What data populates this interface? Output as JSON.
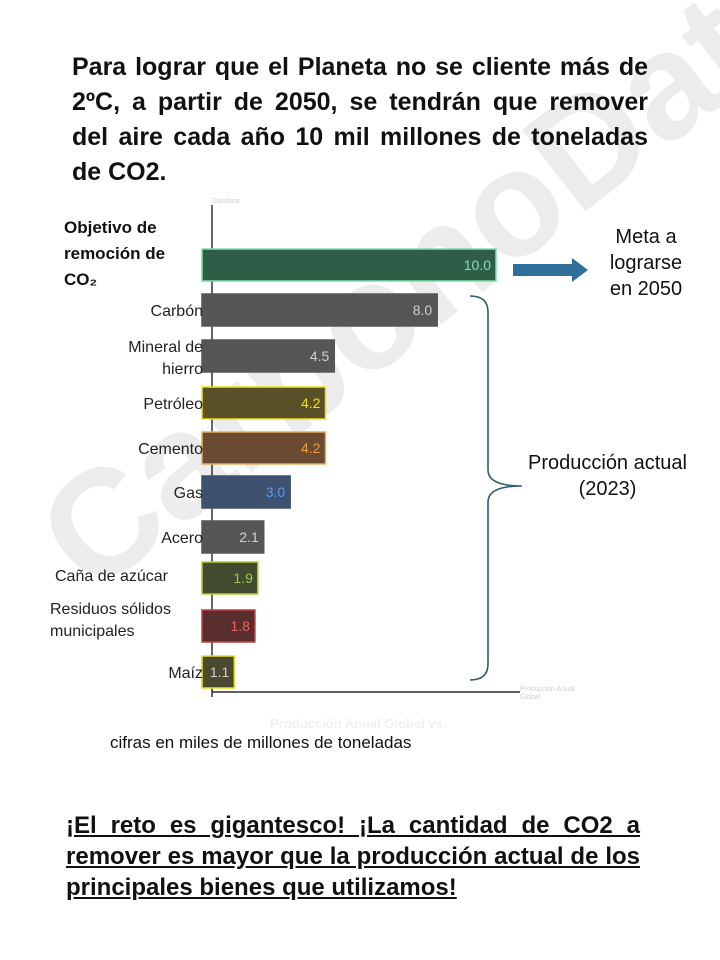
{
  "headline": "Para lograr que el Planeta no se cliente más de 2ºC, a partir de 2050, se tendrán que remover del aire cada año 10 mil millones de toneladas de CO2.",
  "watermark": "CarbonoDato",
  "meta_label": [
    "Meta a",
    "lograrse",
    "en 2050"
  ],
  "production_label": [
    "Producción actual",
    "(2023)"
  ],
  "units_note": "cifras en miles de millones de toneladas",
  "faint_axis_title": "Producción Anual Global vs.",
  "faint_top_label": "Gasolina",
  "faint_right_label": "Producción Anual Global",
  "challenge": "¡El reto es gigantesco! ¡La cantidad de CO2 a remover es mayor que la producción actual de los principales bienes que utilizamos!",
  "colors": {
    "target": "#2f5e48",
    "target_label": "#7fe0b0",
    "gray": "#565656",
    "gray_label": "#d0d0d0",
    "olive": "#5a5028",
    "olive_border": "#e8e020",
    "yellow_label": "#f5e020",
    "brown": "#6a4a30",
    "brown_border": "#e0b060",
    "orange_label": "#f0a040",
    "blue": "#3e5270",
    "blue_label": "#5a9af0",
    "green_olive": "#424a30",
    "green_border": "#b0d030",
    "green_label": "#a0c850",
    "red": "#5a2e2e",
    "red_border": "#c04040",
    "red_label": "#f06060",
    "arrow": "#2f6f9a",
    "brace": "#2c5f6e"
  },
  "chart_data": {
    "type": "bar",
    "orientation": "horizontal",
    "categories": [
      "Objetivo de remoción de CO₂",
      "Carbón",
      "Mineral de hierro",
      "Petróleo",
      "Cemento",
      "Gas",
      "Acero",
      "Caña de azúcar",
      "Residuos sólidos municipales",
      "Maíz"
    ],
    "category_lines": [
      [
        "Objetivo de",
        "remoción de",
        "CO₂"
      ],
      [
        "Carbón"
      ],
      [
        "Mineral de",
        "hierro"
      ],
      [
        "Petróleo"
      ],
      [
        "Cemento"
      ],
      [
        "Gas"
      ],
      [
        "Acero"
      ],
      [
        "Caña de azúcar"
      ],
      [
        "Residuos sólidos",
        "municipales"
      ],
      [
        "Maíz"
      ]
    ],
    "values": [
      10.0,
      8.0,
      4.5,
      4.2,
      4.2,
      3.0,
      2.1,
      1.9,
      1.8,
      1.1
    ],
    "value_labels": [
      "10.0",
      "8.0",
      "4.5",
      "4.2",
      "4.2",
      "3.0",
      "2.1",
      "1.9",
      "1.8",
      "1.1"
    ],
    "fills": [
      "#2f5e48",
      "#565656",
      "#565656",
      "#5a5028",
      "#6a4a30",
      "#3e5270",
      "#565656",
      "#424a30",
      "#5a2e2e",
      "#4a4a30"
    ],
    "borders": [
      "#7fe0b0",
      "#565656",
      "#565656",
      "#e8e020",
      "#e0b060",
      "#3e5270",
      "#565656",
      "#b0d030",
      "#c04040",
      "#e8e020"
    ],
    "label_colors": [
      "#7fe0b0",
      "#d0d0d0",
      "#d0d0d0",
      "#f5e020",
      "#f0a040",
      "#5a9af0",
      "#d0d0d0",
      "#a0c850",
      "#f06060",
      "#d0d0d0"
    ],
    "xlim": [
      0,
      10.5
    ],
    "grid": false,
    "legend": "none"
  }
}
